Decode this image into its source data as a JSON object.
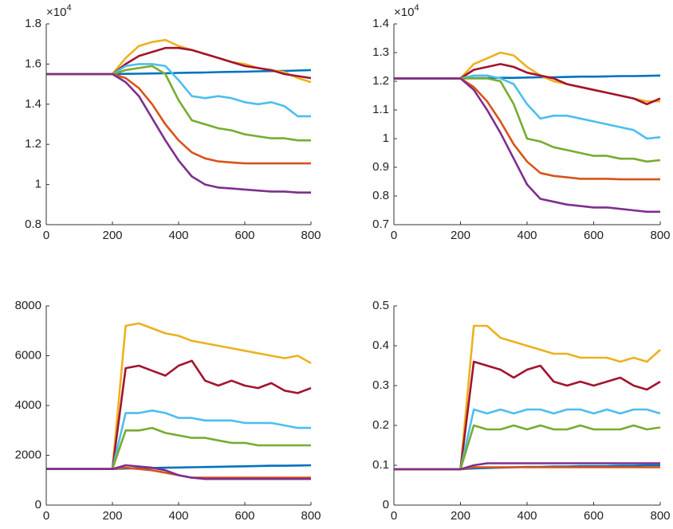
{
  "chart_data": [
    {
      "type": "line",
      "y_multiplier": {
        "base": "×10",
        "exponent": "4"
      },
      "x": [
        0,
        40,
        80,
        120,
        160,
        200,
        240,
        280,
        320,
        360,
        400,
        440,
        480,
        520,
        560,
        600,
        640,
        680,
        720,
        760,
        800
      ],
      "xlim": [
        0,
        800
      ],
      "xticks": [
        0,
        200,
        400,
        600,
        800
      ],
      "ylim": [
        8000,
        18000
      ],
      "yticks": [
        {
          "value": 8000,
          "label": "0.8"
        },
        {
          "value": 10000,
          "label": "1"
        },
        {
          "value": 12000,
          "label": "1.2"
        },
        {
          "value": 14000,
          "label": "1.4"
        },
        {
          "value": 16000,
          "label": "1.6"
        },
        {
          "value": 18000,
          "label": "1.8"
        }
      ],
      "series": [
        {
          "color": "#0072BD",
          "values": [
            15500,
            15500,
            15500,
            15500,
            15500,
            15500,
            15510,
            15520,
            15530,
            15540,
            15560,
            15570,
            15580,
            15600,
            15610,
            15620,
            15640,
            15650,
            15660,
            15680,
            15700
          ]
        },
        {
          "color": "#EDB120",
          "values": [
            15500,
            15500,
            15500,
            15500,
            15500,
            15500,
            16300,
            16900,
            17100,
            17200,
            16900,
            16700,
            16500,
            16300,
            16100,
            16000,
            15800,
            15700,
            15600,
            15300,
            15100
          ]
        },
        {
          "color": "#A2142F",
          "values": [
            15500,
            15500,
            15500,
            15500,
            15500,
            15500,
            16000,
            16400,
            16600,
            16800,
            16800,
            16700,
            16500,
            16300,
            16100,
            15900,
            15800,
            15700,
            15500,
            15400,
            15300
          ]
        },
        {
          "color": "#4DBEEE",
          "values": [
            15500,
            15500,
            15500,
            15500,
            15500,
            15500,
            15900,
            16000,
            16000,
            15900,
            15200,
            14400,
            14300,
            14400,
            14300,
            14100,
            14000,
            14100,
            13900,
            13400,
            13400
          ]
        },
        {
          "color": "#77AC30",
          "values": [
            15500,
            15500,
            15500,
            15500,
            15500,
            15500,
            15700,
            15800,
            15900,
            15500,
            14200,
            13200,
            13000,
            12800,
            12700,
            12500,
            12400,
            12300,
            12300,
            12200,
            12200
          ]
        },
        {
          "color": "#D95319",
          "values": [
            15500,
            15500,
            15500,
            15500,
            15500,
            15500,
            15300,
            14800,
            14000,
            13000,
            12200,
            11600,
            11300,
            11150,
            11100,
            11050,
            11050,
            11050,
            11050,
            11050,
            11050
          ]
        },
        {
          "color": "#7E2F8E",
          "values": [
            15500,
            15500,
            15500,
            15500,
            15500,
            15500,
            15100,
            14400,
            13300,
            12200,
            11200,
            10400,
            10000,
            9850,
            9800,
            9750,
            9700,
            9650,
            9650,
            9600,
            9600
          ]
        }
      ]
    },
    {
      "type": "line",
      "y_multiplier": {
        "base": "×10",
        "exponent": "4"
      },
      "x": [
        0,
        40,
        80,
        120,
        160,
        200,
        240,
        280,
        320,
        360,
        400,
        440,
        480,
        520,
        560,
        600,
        640,
        680,
        720,
        760,
        800
      ],
      "xlim": [
        0,
        800
      ],
      "xticks": [
        0,
        200,
        400,
        600,
        800
      ],
      "ylim": [
        7000,
        14000
      ],
      "yticks": [
        {
          "value": 7000,
          "label": "0.7"
        },
        {
          "value": 8000,
          "label": "0.8"
        },
        {
          "value": 9000,
          "label": "0.9"
        },
        {
          "value": 10000,
          "label": "1"
        },
        {
          "value": 11000,
          "label": "1.1"
        },
        {
          "value": 12000,
          "label": "1.2"
        },
        {
          "value": 13000,
          "label": "1.3"
        },
        {
          "value": 14000,
          "label": "1.4"
        }
      ],
      "series": [
        {
          "color": "#0072BD",
          "values": [
            12100,
            12100,
            12100,
            12100,
            12100,
            12100,
            12110,
            12110,
            12120,
            12120,
            12130,
            12140,
            12140,
            12150,
            12160,
            12160,
            12170,
            12180,
            12180,
            12190,
            12200
          ]
        },
        {
          "color": "#EDB120",
          "values": [
            12100,
            12100,
            12100,
            12100,
            12100,
            12100,
            12600,
            12800,
            13000,
            12900,
            12500,
            12200,
            12000,
            11900,
            11800,
            11700,
            11600,
            11500,
            11400,
            11300,
            11300
          ]
        },
        {
          "color": "#A2142F",
          "values": [
            12100,
            12100,
            12100,
            12100,
            12100,
            12100,
            12400,
            12500,
            12600,
            12500,
            12300,
            12200,
            12100,
            11900,
            11800,
            11700,
            11600,
            11500,
            11400,
            11200,
            11400
          ]
        },
        {
          "color": "#4DBEEE",
          "values": [
            12100,
            12100,
            12100,
            12100,
            12100,
            12100,
            12200,
            12200,
            12100,
            11900,
            11200,
            10700,
            10800,
            10800,
            10700,
            10600,
            10500,
            10400,
            10300,
            10000,
            10050
          ]
        },
        {
          "color": "#77AC30",
          "values": [
            12100,
            12100,
            12100,
            12100,
            12100,
            12100,
            12100,
            12100,
            12000,
            11200,
            10000,
            9900,
            9700,
            9600,
            9500,
            9400,
            9400,
            9300,
            9300,
            9200,
            9250
          ]
        },
        {
          "color": "#D95319",
          "values": [
            12100,
            12100,
            12100,
            12100,
            12100,
            12100,
            11800,
            11300,
            10600,
            9800,
            9200,
            8800,
            8700,
            8650,
            8600,
            8600,
            8600,
            8580,
            8580,
            8580,
            8580
          ]
        },
        {
          "color": "#7E2F8E",
          "values": [
            12100,
            12100,
            12100,
            12100,
            12100,
            12100,
            11700,
            11000,
            10200,
            9300,
            8400,
            7900,
            7800,
            7700,
            7650,
            7600,
            7600,
            7550,
            7500,
            7450,
            7450
          ]
        }
      ]
    },
    {
      "type": "line",
      "x": [
        0,
        40,
        80,
        120,
        160,
        200,
        240,
        280,
        320,
        360,
        400,
        440,
        480,
        520,
        560,
        600,
        640,
        680,
        720,
        760,
        800
      ],
      "xlim": [
        0,
        800
      ],
      "xticks": [
        0,
        200,
        400,
        600,
        800
      ],
      "ylim": [
        0,
        8000
      ],
      "yticks": [
        0,
        2000,
        4000,
        6000,
        8000
      ],
      "series": [
        {
          "color": "#0072BD",
          "values": [
            1450,
            1450,
            1450,
            1450,
            1450,
            1450,
            1470,
            1480,
            1490,
            1500,
            1510,
            1520,
            1530,
            1540,
            1550,
            1560,
            1570,
            1580,
            1580,
            1590,
            1600
          ]
        },
        {
          "color": "#EDB120",
          "values": [
            1450,
            1450,
            1450,
            1450,
            1450,
            1450,
            7200,
            7300,
            7100,
            6900,
            6800,
            6600,
            6500,
            6400,
            6300,
            6200,
            6100,
            6000,
            5900,
            6000,
            5700
          ]
        },
        {
          "color": "#A2142F",
          "values": [
            1450,
            1450,
            1450,
            1450,
            1450,
            1450,
            5500,
            5600,
            5400,
            5200,
            5600,
            5800,
            5000,
            4800,
            5000,
            4800,
            4700,
            4900,
            4600,
            4500,
            4700
          ]
        },
        {
          "color": "#4DBEEE",
          "values": [
            1450,
            1450,
            1450,
            1450,
            1450,
            1450,
            3700,
            3700,
            3800,
            3700,
            3500,
            3500,
            3400,
            3400,
            3400,
            3300,
            3300,
            3300,
            3200,
            3100,
            3100
          ]
        },
        {
          "color": "#77AC30",
          "values": [
            1450,
            1450,
            1450,
            1450,
            1450,
            1450,
            3000,
            3000,
            3100,
            2900,
            2800,
            2700,
            2700,
            2600,
            2500,
            2500,
            2400,
            2400,
            2400,
            2400,
            2400
          ]
        },
        {
          "color": "#D95319",
          "values": [
            1450,
            1450,
            1450,
            1450,
            1450,
            1450,
            1500,
            1450,
            1400,
            1300,
            1200,
            1100,
            1100,
            1100,
            1100,
            1100,
            1100,
            1100,
            1100,
            1100,
            1100
          ]
        },
        {
          "color": "#7E2F8E",
          "values": [
            1450,
            1450,
            1450,
            1450,
            1450,
            1450,
            1600,
            1550,
            1500,
            1400,
            1200,
            1100,
            1050,
            1050,
            1050,
            1050,
            1050,
            1050,
            1050,
            1050,
            1050
          ]
        }
      ]
    },
    {
      "type": "line",
      "x": [
        0,
        40,
        80,
        120,
        160,
        200,
        240,
        280,
        320,
        360,
        400,
        440,
        480,
        520,
        560,
        600,
        640,
        680,
        720,
        760,
        800
      ],
      "xlim": [
        0,
        800
      ],
      "xticks": [
        0,
        200,
        400,
        600,
        800
      ],
      "ylim": [
        0,
        0.5
      ],
      "yticks": [
        0,
        0.1,
        0.2,
        0.3,
        0.4,
        0.5
      ],
      "series": [
        {
          "color": "#0072BD",
          "values": [
            0.09,
            0.09,
            0.09,
            0.09,
            0.09,
            0.09,
            0.092,
            0.093,
            0.094,
            0.095,
            0.096,
            0.096,
            0.097,
            0.097,
            0.098,
            0.098,
            0.098,
            0.099,
            0.099,
            0.1,
            0.1
          ]
        },
        {
          "color": "#EDB120",
          "values": [
            0.09,
            0.09,
            0.09,
            0.09,
            0.09,
            0.09,
            0.45,
            0.45,
            0.42,
            0.41,
            0.4,
            0.39,
            0.38,
            0.38,
            0.37,
            0.37,
            0.37,
            0.36,
            0.37,
            0.36,
            0.39
          ]
        },
        {
          "color": "#A2142F",
          "values": [
            0.09,
            0.09,
            0.09,
            0.09,
            0.09,
            0.09,
            0.36,
            0.35,
            0.34,
            0.32,
            0.34,
            0.35,
            0.31,
            0.3,
            0.31,
            0.3,
            0.31,
            0.32,
            0.3,
            0.29,
            0.31
          ]
        },
        {
          "color": "#4DBEEE",
          "values": [
            0.09,
            0.09,
            0.09,
            0.09,
            0.09,
            0.09,
            0.24,
            0.23,
            0.24,
            0.23,
            0.24,
            0.24,
            0.23,
            0.24,
            0.24,
            0.23,
            0.24,
            0.23,
            0.24,
            0.24,
            0.23
          ]
        },
        {
          "color": "#77AC30",
          "values": [
            0.09,
            0.09,
            0.09,
            0.09,
            0.09,
            0.09,
            0.2,
            0.19,
            0.19,
            0.2,
            0.19,
            0.2,
            0.19,
            0.19,
            0.2,
            0.19,
            0.19,
            0.19,
            0.2,
            0.19,
            0.195
          ]
        },
        {
          "color": "#D95319",
          "values": [
            0.09,
            0.09,
            0.09,
            0.09,
            0.09,
            0.09,
            0.095,
            0.095,
            0.095,
            0.095,
            0.095,
            0.095,
            0.095,
            0.095,
            0.095,
            0.095,
            0.095,
            0.095,
            0.095,
            0.095,
            0.095
          ]
        },
        {
          "color": "#7E2F8E",
          "values": [
            0.09,
            0.09,
            0.09,
            0.09,
            0.09,
            0.09,
            0.1,
            0.105,
            0.105,
            0.105,
            0.105,
            0.105,
            0.105,
            0.105,
            0.105,
            0.105,
            0.105,
            0.105,
            0.105,
            0.105,
            0.105
          ]
        }
      ]
    }
  ]
}
